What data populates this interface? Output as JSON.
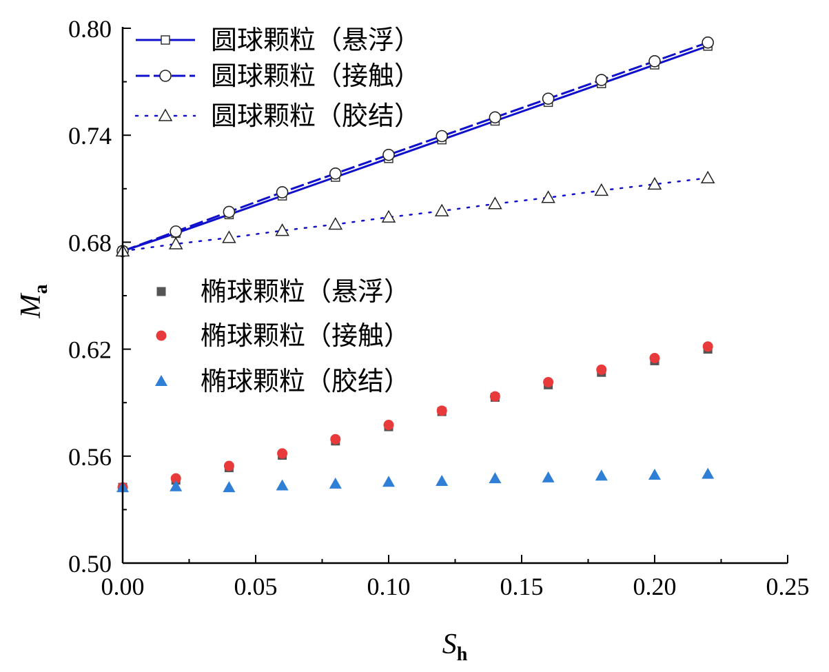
{
  "chart_data": {
    "type": "line",
    "title": "",
    "xlabel": "S",
    "xlabel_sub": "h",
    "ylabel": "M",
    "ylabel_sub": "a",
    "xlim": [
      0.0,
      0.25
    ],
    "ylim": [
      0.5,
      0.8
    ],
    "xticks": [
      "0.00",
      "0.05",
      "0.10",
      "0.15",
      "0.20",
      "0.25"
    ],
    "yticks": [
      "0.50",
      "0.56",
      "0.62",
      "0.68",
      "0.74",
      "0.80"
    ],
    "grid": false,
    "legend_placement": [
      "top-left",
      "middle-left"
    ],
    "x": [
      0.0,
      0.02,
      0.04,
      0.06,
      0.08,
      0.1,
      0.12,
      0.14,
      0.16,
      0.18,
      0.2,
      0.22
    ],
    "series": [
      {
        "name": "圆球颗粒（悬浮）",
        "color": "#1010cc",
        "line": "solid",
        "marker": "open-square",
        "values": [
          0.675,
          0.685,
          0.6955,
          0.706,
          0.7165,
          0.727,
          0.7375,
          0.748,
          0.7585,
          0.769,
          0.7795,
          0.79
        ]
      },
      {
        "name": "圆球颗粒（接触）",
        "color": "#1010cc",
        "line": "dashed",
        "marker": "open-circle",
        "values": [
          0.675,
          0.686,
          0.697,
          0.708,
          0.7185,
          0.729,
          0.7395,
          0.75,
          0.7605,
          0.771,
          0.7815,
          0.792
        ]
      },
      {
        "name": "圆球颗粒（胶结）",
        "color": "#1010cc",
        "line": "dotted",
        "marker": "open-triangle",
        "values": [
          0.675,
          0.679,
          0.6825,
          0.6865,
          0.69,
          0.694,
          0.6975,
          0.7015,
          0.705,
          0.709,
          0.7125,
          0.716
        ]
      },
      {
        "name": "椭球颗粒（悬浮）",
        "color": "#555555",
        "line": "none",
        "marker": "filled-square",
        "values": [
          0.5425,
          0.5465,
          0.5535,
          0.5605,
          0.5685,
          0.5765,
          0.585,
          0.593,
          0.6,
          0.607,
          0.6135,
          0.62
        ]
      },
      {
        "name": "椭球颗粒（接触）",
        "color": "#e83a3a",
        "line": "none",
        "marker": "filled-circle",
        "values": [
          0.5425,
          0.5475,
          0.5545,
          0.5615,
          0.5695,
          0.5775,
          0.5855,
          0.5935,
          0.6015,
          0.6085,
          0.615,
          0.6215
        ]
      },
      {
        "name": "椭球颗粒（胶结）",
        "color": "#2f7fd6",
        "line": "none",
        "marker": "filled-triangle",
        "values": [
          0.5425,
          0.543,
          0.5425,
          0.5435,
          0.5445,
          0.5455,
          0.546,
          0.5475,
          0.548,
          0.549,
          0.5495,
          0.55
        ]
      }
    ]
  }
}
